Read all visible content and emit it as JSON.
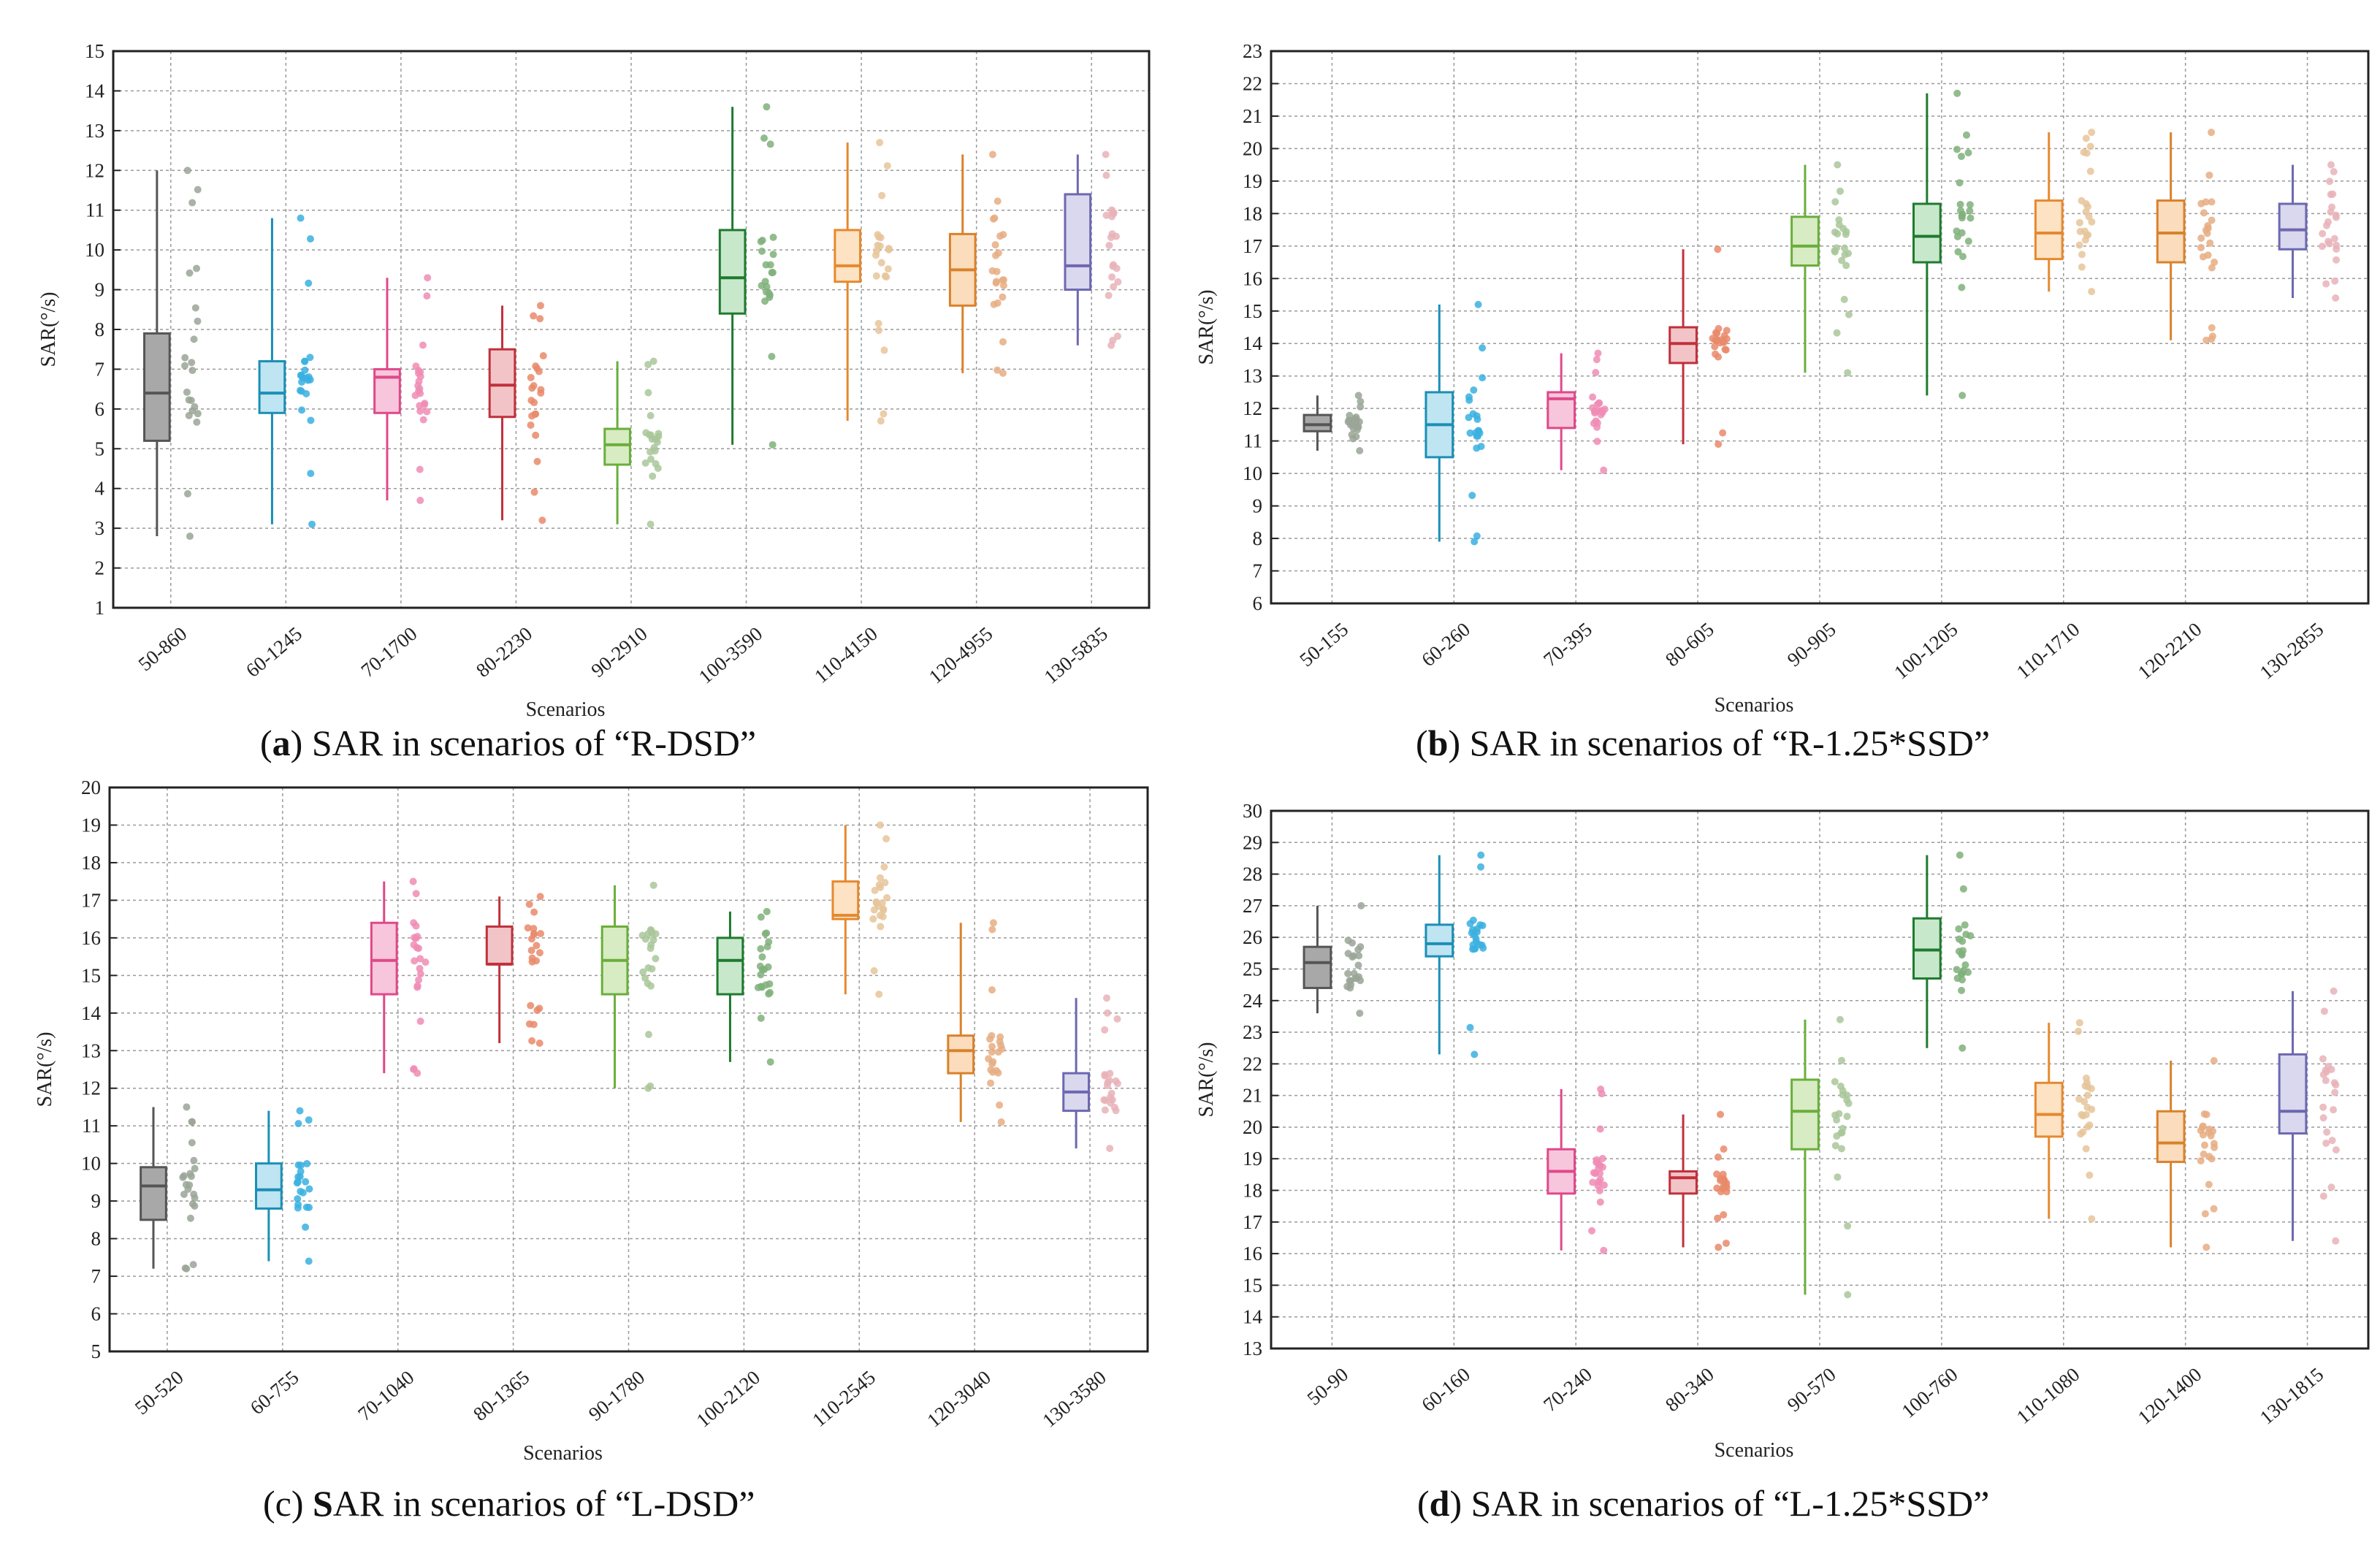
{
  "chart_data": [
    {
      "id": "a",
      "type": "box",
      "caption_letter": "a",
      "caption_rest": " SAR in scenarios of “R-DSD”",
      "ylabel": "SAR(°/s)",
      "xlabel": "Scenarios",
      "ylim": [
        1,
        15
      ],
      "yticks": [
        1,
        2,
        3,
        4,
        5,
        6,
        7,
        8,
        9,
        10,
        11,
        12,
        13,
        14,
        15
      ],
      "categories": [
        "50-860",
        "60-1245",
        "70-1700",
        "80-2230",
        "90-2910",
        "100-3590",
        "110-4150",
        "120-4955",
        "130-5835"
      ],
      "colors": [
        "#555555",
        "#1a8fb5",
        "#e0488a",
        "#c0313b",
        "#6aae3b",
        "#1f7a2e",
        "#e6892e",
        "#d9822b",
        "#6d68b0"
      ],
      "fills": [
        "#a8a8a8",
        "#bfe4f2",
        "#f7c6dc",
        "#f2c4c8",
        "#d7ecc2",
        "#c8e8cc",
        "#fde2c3",
        "#fbdcbc",
        "#d9d8ee"
      ],
      "dots": [
        "#9aa596",
        "#3ab0e0",
        "#f08cb5",
        "#e98a6b",
        "#a9c79a",
        "#7fb07a",
        "#e6c49a",
        "#e6ad82",
        "#e8b3b8"
      ],
      "boxes": [
        {
          "wlo": 2.8,
          "q1": 5.2,
          "med": 6.4,
          "q3": 7.9,
          "whi": 12.0
        },
        {
          "wlo": 3.1,
          "q1": 5.9,
          "med": 6.4,
          "q3": 7.2,
          "whi": 10.8
        },
        {
          "wlo": 3.7,
          "q1": 5.9,
          "med": 6.8,
          "q3": 7.0,
          "whi": 9.3
        },
        {
          "wlo": 3.2,
          "q1": 5.8,
          "med": 6.6,
          "q3": 7.5,
          "whi": 8.6
        },
        {
          "wlo": 3.1,
          "q1": 4.6,
          "med": 5.1,
          "q3": 5.5,
          "whi": 7.2
        },
        {
          "wlo": 5.1,
          "q1": 8.4,
          "med": 9.3,
          "q3": 10.5,
          "whi": 13.6
        },
        {
          "wlo": 5.7,
          "q1": 9.2,
          "med": 9.6,
          "q3": 10.5,
          "whi": 12.7
        },
        {
          "wlo": 6.9,
          "q1": 8.6,
          "med": 9.5,
          "q3": 10.4,
          "whi": 12.4
        },
        {
          "wlo": 7.6,
          "q1": 9.0,
          "med": 9.6,
          "q3": 11.4,
          "whi": 12.4
        }
      ]
    },
    {
      "id": "b",
      "type": "box",
      "caption_letter": "b",
      "caption_rest": " SAR in scenarios of “R-1.25*SSD”",
      "ylabel": "SAR(°/s)",
      "xlabel": "Scenarios",
      "ylim": [
        6,
        23
      ],
      "yticks": [
        6,
        7,
        8,
        9,
        10,
        11,
        12,
        13,
        14,
        15,
        16,
        17,
        18,
        19,
        20,
        21,
        22,
        23
      ],
      "categories": [
        "50-155",
        "60-260",
        "70-395",
        "80-605",
        "90-905",
        "100-1205",
        "110-1710",
        "120-2210",
        "130-2855"
      ],
      "colors": [
        "#555555",
        "#1a8fb5",
        "#e0488a",
        "#c0313b",
        "#6aae3b",
        "#1f7a2e",
        "#e6892e",
        "#d9822b",
        "#6d68b0"
      ],
      "fills": [
        "#a8a8a8",
        "#bfe4f2",
        "#f7c6dc",
        "#f2c4c8",
        "#d7ecc2",
        "#c8e8cc",
        "#fde2c3",
        "#fbdcbc",
        "#d9d8ee"
      ],
      "dots": [
        "#9aa596",
        "#3ab0e0",
        "#f08cb5",
        "#e98a6b",
        "#a9c79a",
        "#7fb07a",
        "#e6c49a",
        "#e6ad82",
        "#e8b3b8"
      ],
      "boxes": [
        {
          "wlo": 10.7,
          "q1": 11.3,
          "med": 11.5,
          "q3": 11.8,
          "whi": 12.4
        },
        {
          "wlo": 7.9,
          "q1": 10.5,
          "med": 11.5,
          "q3": 12.5,
          "whi": 15.2
        },
        {
          "wlo": 10.1,
          "q1": 11.4,
          "med": 12.3,
          "q3": 12.5,
          "whi": 13.7
        },
        {
          "wlo": 10.9,
          "q1": 13.4,
          "med": 14.0,
          "q3": 14.5,
          "whi": 16.9
        },
        {
          "wlo": 13.1,
          "q1": 16.4,
          "med": 17.0,
          "q3": 17.9,
          "whi": 19.5
        },
        {
          "wlo": 12.4,
          "q1": 16.5,
          "med": 17.3,
          "q3": 18.3,
          "whi": 21.7
        },
        {
          "wlo": 15.6,
          "q1": 16.6,
          "med": 17.4,
          "q3": 18.4,
          "whi": 20.5
        },
        {
          "wlo": 14.1,
          "q1": 16.5,
          "med": 17.4,
          "q3": 18.4,
          "whi": 20.5
        },
        {
          "wlo": 15.4,
          "q1": 16.9,
          "med": 17.5,
          "q3": 18.3,
          "whi": 19.5
        }
      ]
    },
    {
      "id": "c",
      "type": "box",
      "caption_letter": "c",
      "caption_s": "S",
      "caption_rest": "AR in scenarios of “L-DSD”",
      "ylabel": "SAR(°/s)",
      "xlabel": "Scenarios",
      "ylim": [
        5,
        20
      ],
      "yticks": [
        5,
        6,
        7,
        8,
        9,
        10,
        11,
        12,
        13,
        14,
        15,
        16,
        17,
        18,
        19,
        20
      ],
      "categories": [
        "50-520",
        "60-755",
        "70-1040",
        "80-1365",
        "90-1780",
        "100-2120",
        "110-2545",
        "120-3040",
        "130-3580"
      ],
      "colors": [
        "#555555",
        "#1a8fb5",
        "#e0488a",
        "#c0313b",
        "#6aae3b",
        "#1f7a2e",
        "#e6892e",
        "#d9822b",
        "#6d68b0"
      ],
      "fills": [
        "#a8a8a8",
        "#bfe4f2",
        "#f7c6dc",
        "#f2c4c8",
        "#d7ecc2",
        "#c8e8cc",
        "#fde2c3",
        "#fbdcbc",
        "#d9d8ee"
      ],
      "dots": [
        "#9aa596",
        "#3ab0e0",
        "#f08cb5",
        "#e98a6b",
        "#a9c79a",
        "#7fb07a",
        "#e6c49a",
        "#e6ad82",
        "#e8b3b8"
      ],
      "boxes": [
        {
          "wlo": 7.2,
          "q1": 8.5,
          "med": 9.4,
          "q3": 9.9,
          "whi": 11.5
        },
        {
          "wlo": 7.4,
          "q1": 8.8,
          "med": 9.3,
          "q3": 10.0,
          "whi": 11.4
        },
        {
          "wlo": 12.4,
          "q1": 14.5,
          "med": 15.4,
          "q3": 16.4,
          "whi": 17.5
        },
        {
          "wlo": 13.2,
          "q1": 15.3,
          "med": 15.3,
          "q3": 16.3,
          "whi": 17.1
        },
        {
          "wlo": 12.0,
          "q1": 14.5,
          "med": 15.4,
          "q3": 16.3,
          "whi": 17.4
        },
        {
          "wlo": 12.7,
          "q1": 14.5,
          "med": 15.4,
          "q3": 16.0,
          "whi": 16.7
        },
        {
          "wlo": 14.5,
          "q1": 16.5,
          "med": 16.6,
          "q3": 17.5,
          "whi": 19.0
        },
        {
          "wlo": 11.1,
          "q1": 12.4,
          "med": 13.0,
          "q3": 13.4,
          "whi": 16.4
        },
        {
          "wlo": 10.4,
          "q1": 11.4,
          "med": 11.9,
          "q3": 12.4,
          "whi": 14.4
        }
      ]
    },
    {
      "id": "d",
      "type": "box",
      "caption_letter": "d",
      "caption_rest": " SAR in scenarios of “L-1.25*SSD”",
      "ylabel": "SAR(°/s)",
      "xlabel": "Scenarios",
      "ylim": [
        13,
        30
      ],
      "yticks": [
        13,
        14,
        15,
        16,
        17,
        18,
        19,
        20,
        21,
        22,
        23,
        24,
        25,
        26,
        27,
        28,
        29,
        30
      ],
      "categories": [
        "50-90",
        "60-160",
        "70-240",
        "80-340",
        "90-570",
        "100-760",
        "110-1080",
        "120-1400",
        "130-1815"
      ],
      "colors": [
        "#555555",
        "#1a8fb5",
        "#e0488a",
        "#c0313b",
        "#6aae3b",
        "#1f7a2e",
        "#e6892e",
        "#d9822b",
        "#6d68b0"
      ],
      "fills": [
        "#a8a8a8",
        "#bfe4f2",
        "#f7c6dc",
        "#f2c4c8",
        "#d7ecc2",
        "#c8e8cc",
        "#fde2c3",
        "#fbdcbc",
        "#d9d8ee"
      ],
      "dots": [
        "#9aa596",
        "#3ab0e0",
        "#f08cb5",
        "#e98a6b",
        "#a9c79a",
        "#7fb07a",
        "#e6c49a",
        "#e6ad82",
        "#e8b3b8"
      ],
      "boxes": [
        {
          "wlo": 23.6,
          "q1": 24.4,
          "med": 25.2,
          "q3": 25.7,
          "whi": 27.0
        },
        {
          "wlo": 22.3,
          "q1": 25.4,
          "med": 25.8,
          "q3": 26.4,
          "whi": 28.6
        },
        {
          "wlo": 16.1,
          "q1": 17.9,
          "med": 18.6,
          "q3": 19.3,
          "whi": 21.2
        },
        {
          "wlo": 16.2,
          "q1": 17.9,
          "med": 18.4,
          "q3": 18.6,
          "whi": 20.4
        },
        {
          "wlo": 14.7,
          "q1": 19.3,
          "med": 20.5,
          "q3": 21.5,
          "whi": 23.4
        },
        {
          "wlo": 22.5,
          "q1": 24.7,
          "med": 25.6,
          "q3": 26.6,
          "whi": 28.6
        },
        {
          "wlo": 17.1,
          "q1": 19.7,
          "med": 20.4,
          "q3": 21.4,
          "whi": 23.3
        },
        {
          "wlo": 16.2,
          "q1": 18.9,
          "med": 19.5,
          "q3": 20.5,
          "whi": 22.1
        },
        {
          "wlo": 16.4,
          "q1": 19.8,
          "med": 20.5,
          "q3": 22.3,
          "whi": 24.3
        }
      ]
    }
  ]
}
